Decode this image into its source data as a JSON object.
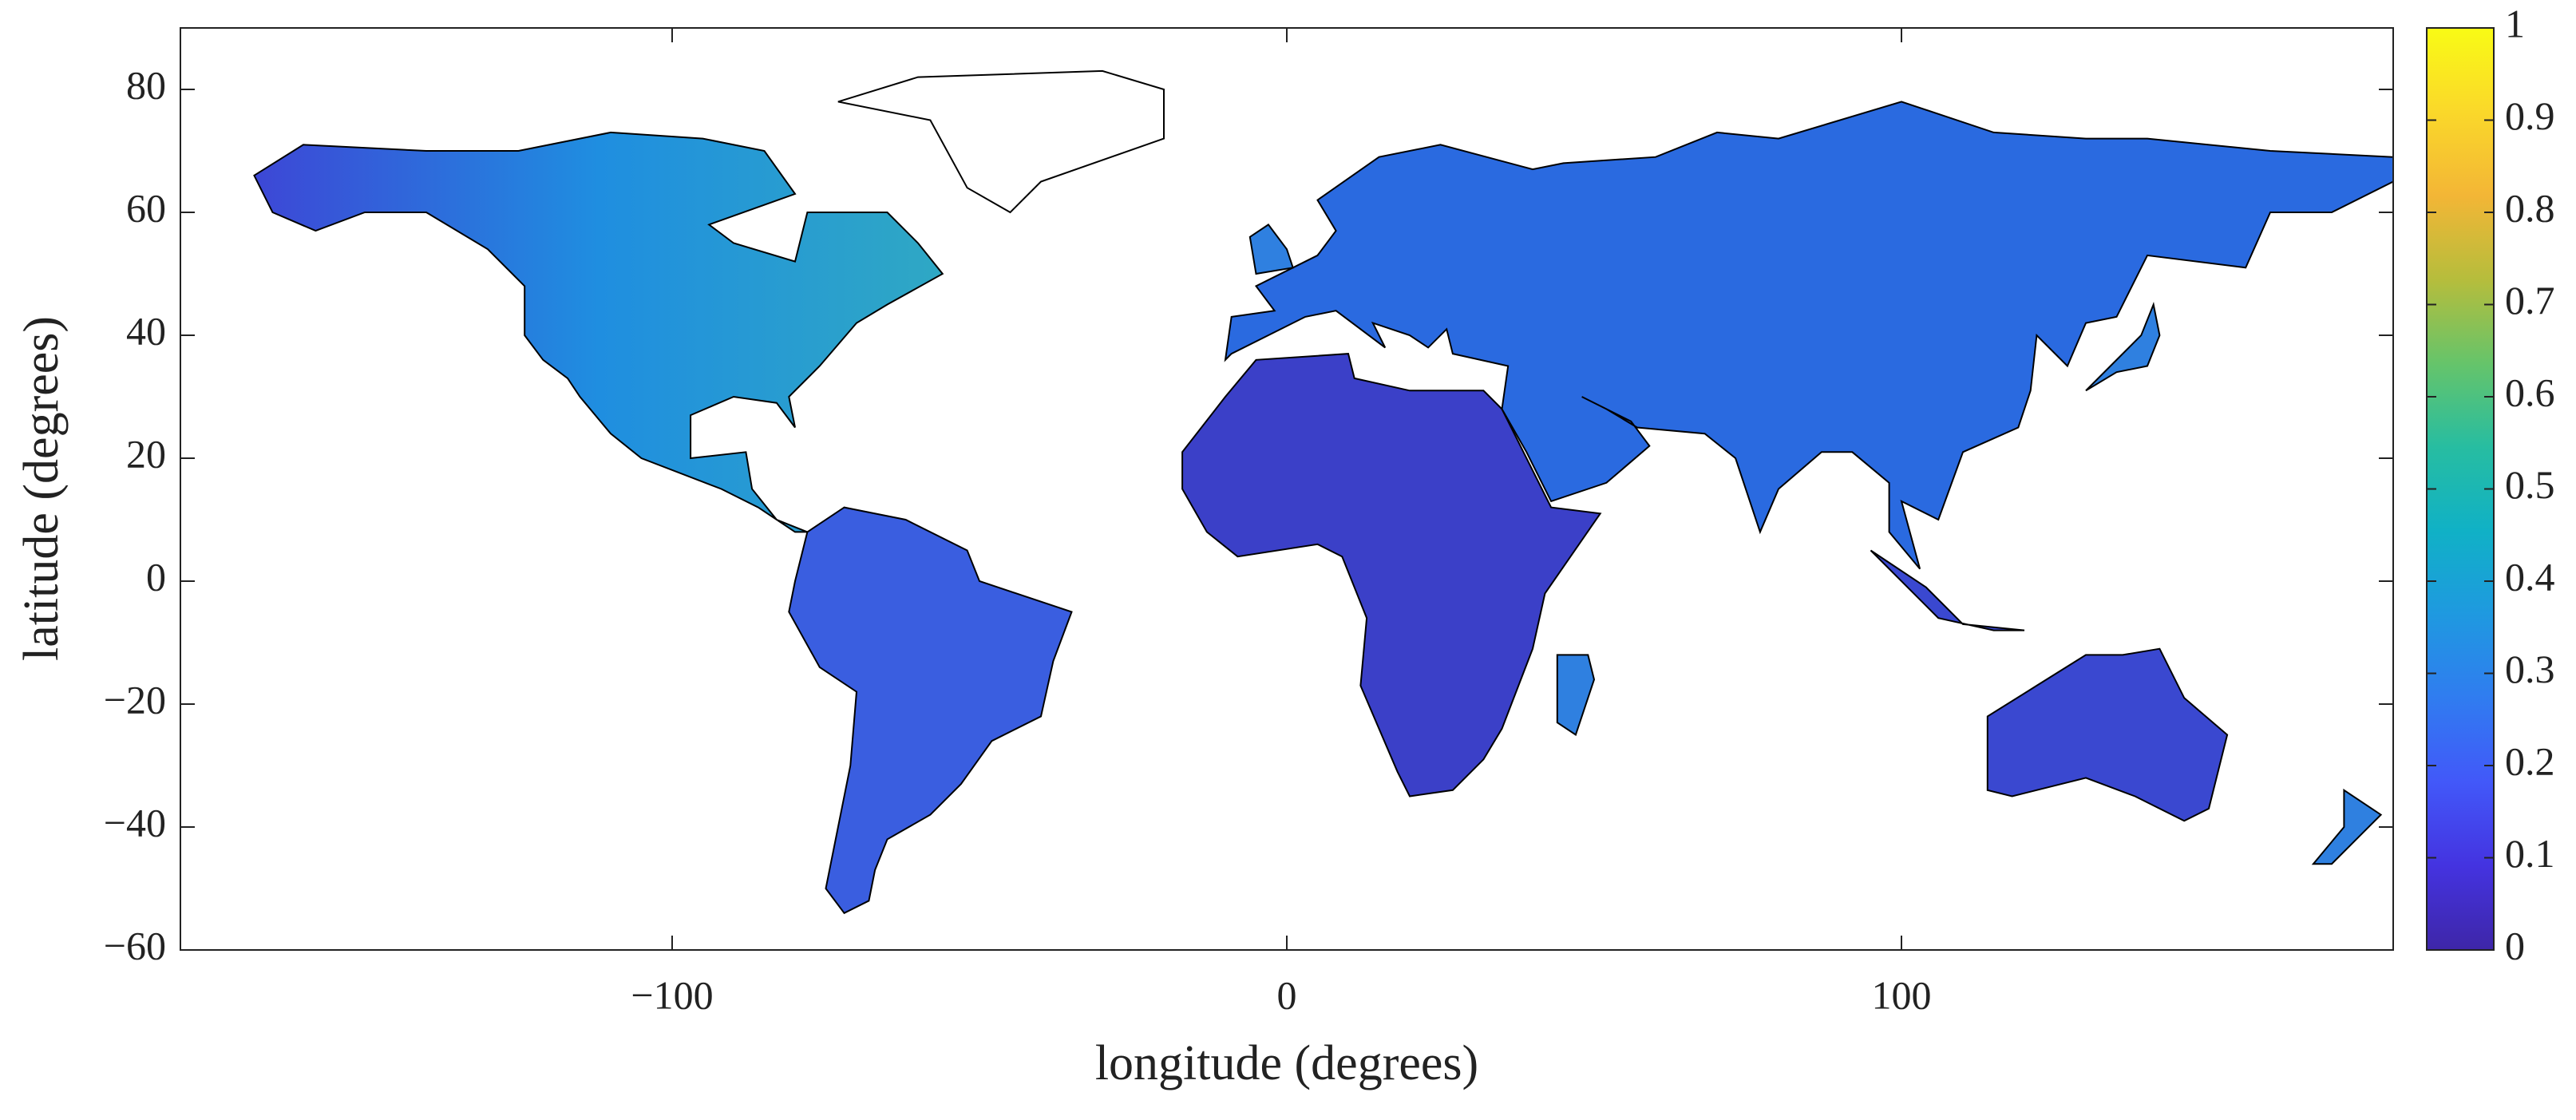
{
  "chart_data": {
    "type": "map",
    "xlabel": "longitude (degrees)",
    "ylabel": "latitude (degrees)",
    "xlim": [
      -180,
      180
    ],
    "ylim": [
      -60,
      90
    ],
    "xticks": [
      {
        "value": -100,
        "label": "−100"
      },
      0,
      100
    ],
    "yticks": [
      {
        "value": -60,
        "label": "−60"
      },
      {
        "value": -40,
        "label": "−40"
      },
      {
        "value": -20,
        "label": "−20"
      },
      0,
      20,
      40,
      60,
      80
    ],
    "colorbar": {
      "colormap": "parula",
      "lim": [
        0,
        1
      ],
      "ticks": [
        0,
        0.1,
        0.2,
        0.3,
        0.4,
        0.5,
        0.6,
        0.7,
        0.8,
        0.9,
        1
      ]
    }
  }
}
